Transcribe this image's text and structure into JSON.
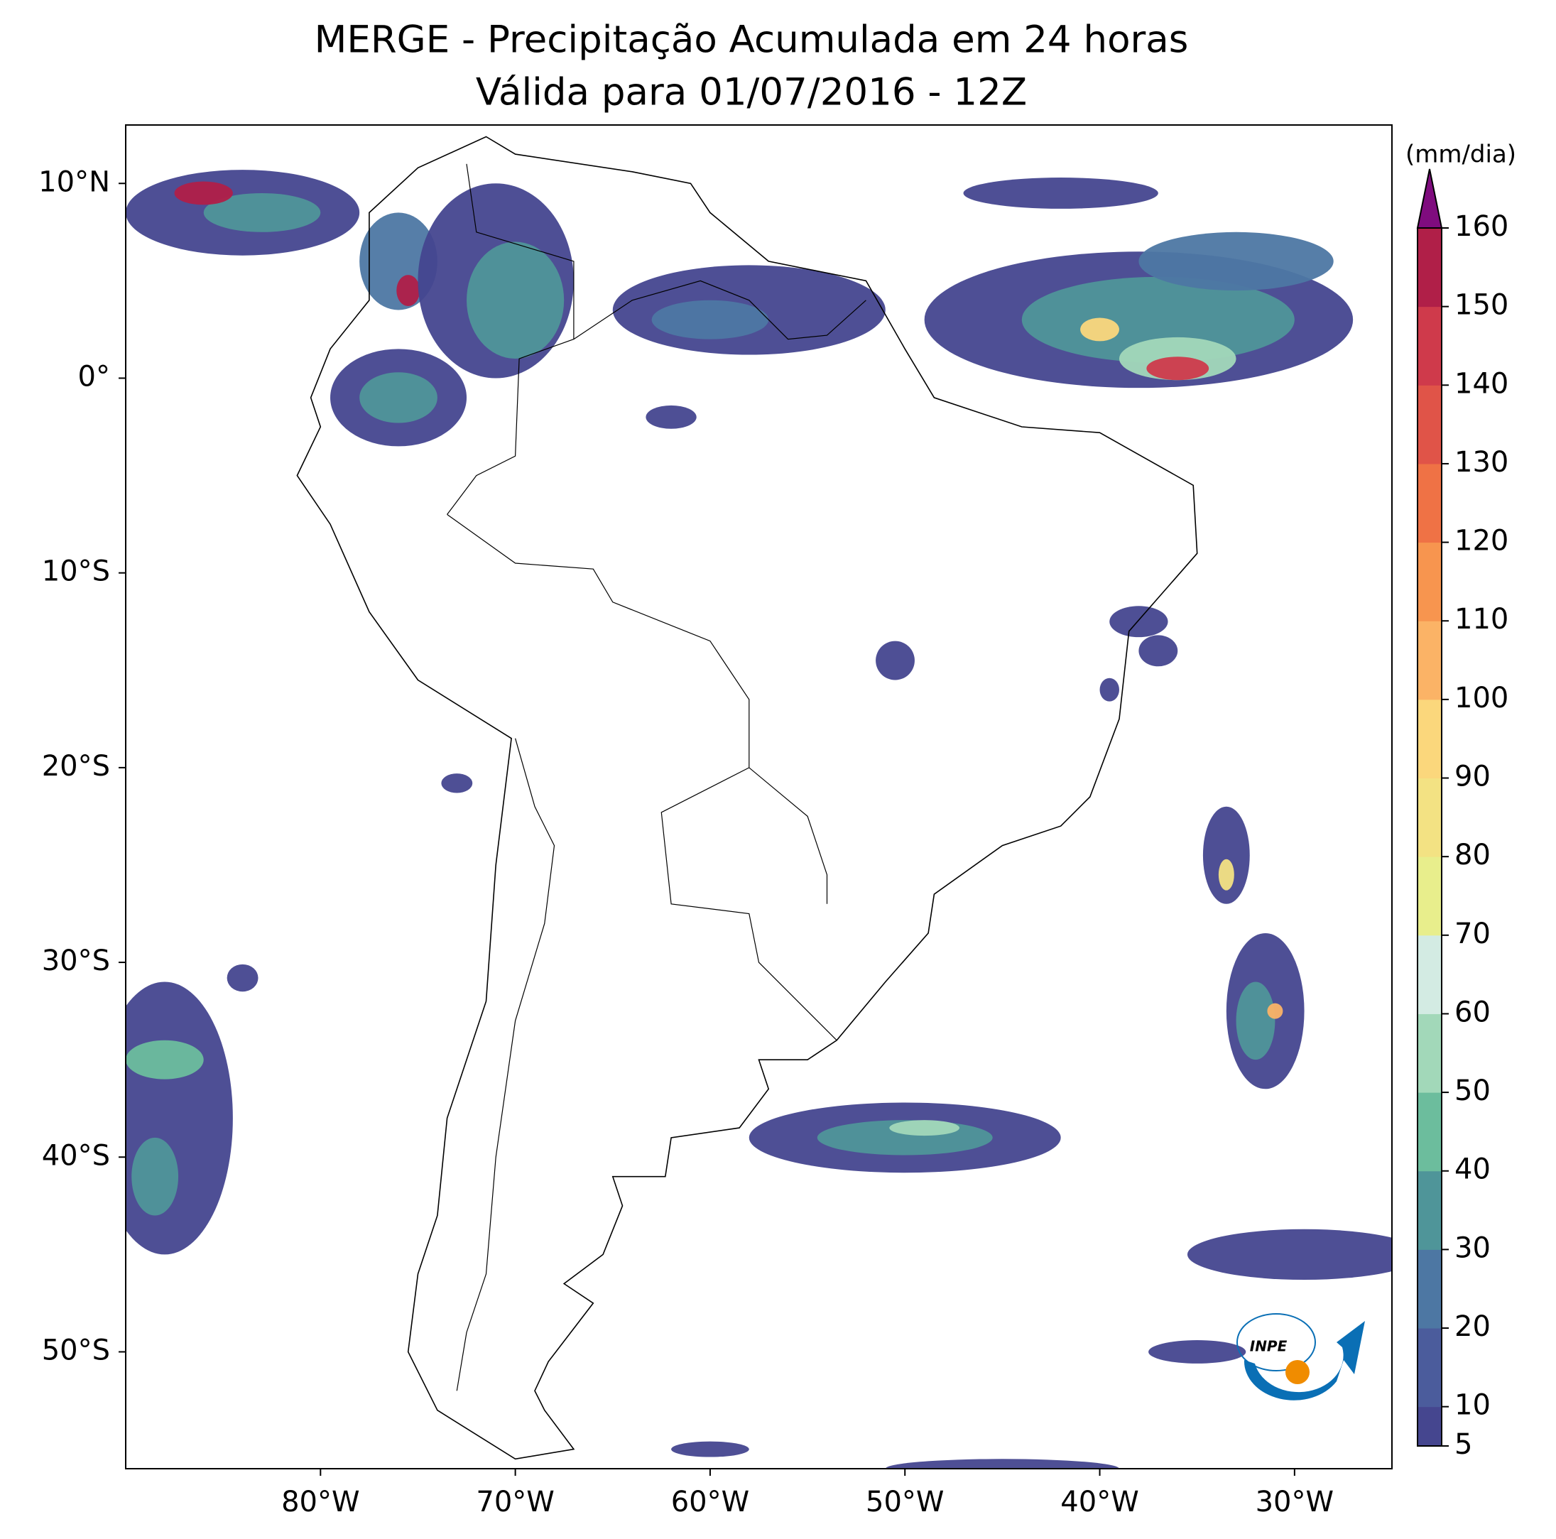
{
  "chart_data": {
    "type": "map",
    "title": "MERGE - Precipitação Acumulada em 24 horas",
    "subtitle": "Válida para 01/07/2016 - 12Z",
    "xlim": [
      -90,
      -25
    ],
    "ylim": [
      -56,
      13
    ],
    "xticks": [
      {
        "value": -80,
        "label": "80°W"
      },
      {
        "value": -70,
        "label": "70°W"
      },
      {
        "value": -60,
        "label": "60°W"
      },
      {
        "value": -50,
        "label": "50°W"
      },
      {
        "value": -40,
        "label": "40°W"
      },
      {
        "value": -30,
        "label": "30°W"
      }
    ],
    "yticks": [
      {
        "value": 10,
        "label": "10°N"
      },
      {
        "value": 0,
        "label": "0°"
      },
      {
        "value": -10,
        "label": "10°S"
      },
      {
        "value": -20,
        "label": "20°S"
      },
      {
        "value": -30,
        "label": "30°S"
      },
      {
        "value": -40,
        "label": "40°S"
      },
      {
        "value": -50,
        "label": "50°S"
      }
    ],
    "colorbar": {
      "label": "(mm/dia)",
      "range": [
        5,
        160
      ],
      "levels": [
        5,
        10,
        20,
        30,
        40,
        50,
        60,
        70,
        80,
        90,
        100,
        110,
        120,
        130,
        140,
        150,
        160
      ],
      "colors": [
        "#45468f",
        "#4b5c9c",
        "#4d77a3",
        "#4f9599",
        "#6cbd9d",
        "#a2d8b9",
        "#d3ebe3",
        "#e8ee8c",
        "#f3e283",
        "#fbd77c",
        "#fbb366",
        "#f7954f",
        "#ef7245",
        "#e05448",
        "#cf3a4b",
        "#b01f48"
      ],
      "extend_color": "#7f0c7e"
    },
    "logo_text": "INPE"
  }
}
